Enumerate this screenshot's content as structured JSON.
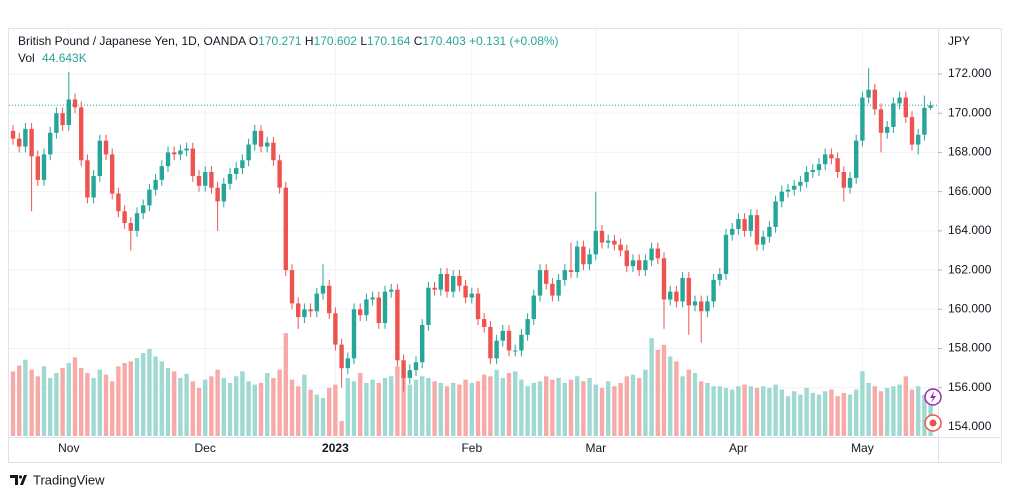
{
  "header": {
    "symbol": "British Pound / Japanese Yen, 1D, OANDA",
    "o_label": "O",
    "open": "170.271",
    "h_label": "H",
    "high": "170.602",
    "l_label": "L",
    "low": "170.164",
    "c_label": "C",
    "close": "170.403",
    "change": "+0.131",
    "change_pct": "(+0.08%)",
    "vol_label": "Vol",
    "vol_value": "44.643K"
  },
  "footer": {
    "brand": "TradingView"
  },
  "chart_data": {
    "type": "candlestick",
    "currency": "JPY",
    "up_color": "#26a69a",
    "down_color": "#ef5350",
    "vol_up_color": "#9fd9d1",
    "vol_down_color": "#f7aaa8",
    "grid": true,
    "ylim": [
      153.6,
      173.3
    ],
    "yticks": [
      {
        "value": 154,
        "label": "154.000"
      },
      {
        "value": 156,
        "label": "156.000"
      },
      {
        "value": 158,
        "label": "158.000"
      },
      {
        "value": 160,
        "label": "160.000"
      },
      {
        "value": 162,
        "label": "162.000"
      },
      {
        "value": 164,
        "label": "164.000"
      },
      {
        "value": 166,
        "label": "166.000"
      },
      {
        "value": 168,
        "label": "168.000"
      },
      {
        "value": 170,
        "label": "170.000"
      },
      {
        "value": 172,
        "label": "172.000"
      }
    ],
    "vol_ylim": [
      0,
      240
    ],
    "categories": [
      null,
      null,
      null,
      null,
      null,
      null,
      null,
      null,
      null,
      "Nov",
      null,
      null,
      null,
      null,
      null,
      null,
      null,
      null,
      null,
      null,
      null,
      null,
      null,
      null,
      null,
      null,
      null,
      null,
      null,
      null,
      null,
      "Dec",
      null,
      null,
      null,
      null,
      null,
      null,
      null,
      null,
      null,
      null,
      null,
      null,
      null,
      null,
      null,
      null,
      null,
      null,
      null,
      null,
      "2023",
      null,
      null,
      null,
      null,
      null,
      null,
      null,
      null,
      null,
      null,
      null,
      null,
      null,
      null,
      null,
      null,
      null,
      null,
      null,
      null,
      null,
      "Feb",
      null,
      null,
      null,
      null,
      null,
      null,
      null,
      null,
      null,
      null,
      null,
      null,
      null,
      null,
      null,
      null,
      null,
      null,
      null,
      "Mar",
      null,
      null,
      null,
      null,
      null,
      null,
      null,
      null,
      null,
      null,
      null,
      null,
      null,
      null,
      null,
      null,
      null,
      null,
      null,
      null,
      null,
      null,
      "Apr",
      null,
      null,
      null,
      null,
      null,
      null,
      null,
      null,
      null,
      null,
      null,
      null,
      null,
      null,
      null,
      null,
      null,
      null,
      null,
      "May",
      null,
      null,
      null,
      null,
      null,
      null,
      null,
      null,
      null,
      null,
      null
    ],
    "open": [
      169.1,
      168.7,
      168.3,
      169.2,
      167.8,
      166.6,
      167.9,
      169.0,
      170.0,
      169.4,
      170.7,
      170.3,
      167.6,
      165.7,
      166.8,
      168.6,
      167.9,
      165.9,
      165.0,
      164.4,
      164.0,
      164.9,
      165.3,
      166.1,
      166.6,
      167.3,
      168.0,
      167.9,
      168.1,
      168.2,
      166.8,
      166.3,
      167.0,
      166.2,
      165.5,
      166.4,
      166.9,
      167.2,
      167.6,
      168.4,
      169.1,
      168.3,
      168.5,
      167.6,
      166.2,
      162.0,
      160.3,
      159.6,
      160.0,
      159.9,
      160.8,
      161.2,
      159.8,
      158.2,
      157.0,
      157.5,
      160.0,
      159.7,
      160.5,
      160.6,
      159.3,
      160.9,
      161.0,
      157.4,
      156.5,
      156.9,
      157.3,
      159.2,
      161.1,
      161.0,
      161.8,
      160.9,
      161.7,
      161.2,
      160.6,
      160.8,
      159.5,
      159.1,
      157.5,
      158.4,
      158.9,
      157.9,
      157.9,
      158.7,
      159.5,
      160.7,
      162.0,
      161.3,
      160.7,
      161.5,
      162.0,
      161.9,
      163.2,
      162.3,
      162.8,
      164.0,
      163.4,
      163.5,
      163.3,
      163.0,
      162.2,
      162.5,
      162.0,
      162.5,
      163.1,
      162.6,
      160.5,
      160.9,
      160.4,
      161.6,
      160.2,
      160.4,
      159.9,
      160.4,
      161.5,
      161.8,
      163.8,
      164.1,
      164.6,
      164.0,
      164.8,
      163.3,
      163.7,
      164.2,
      165.5,
      166.0,
      166.1,
      166.3,
      166.5,
      167.0,
      167.1,
      167.4,
      167.9,
      167.7,
      167.0,
      166.2,
      166.7,
      168.6,
      170.8,
      171.2,
      170.2,
      169.0,
      169.3,
      170.5,
      170.8,
      169.8,
      168.4,
      168.9,
      170.271
    ],
    "high": [
      169.4,
      169.0,
      169.5,
      169.5,
      168.1,
      168.2,
      169.3,
      170.3,
      170.3,
      172.1,
      171.0,
      170.6,
      167.9,
      167.1,
      168.9,
      168.9,
      168.2,
      166.2,
      165.3,
      164.7,
      165.2,
      165.6,
      166.4,
      166.9,
      167.6,
      168.3,
      168.3,
      168.4,
      168.5,
      168.5,
      167.1,
      167.3,
      167.3,
      166.5,
      166.7,
      167.2,
      167.5,
      167.9,
      168.7,
      169.4,
      169.4,
      168.8,
      168.8,
      167.9,
      166.5,
      162.3,
      160.6,
      160.3,
      160.3,
      161.1,
      162.3,
      161.5,
      160.1,
      158.5,
      157.8,
      160.3,
      160.3,
      160.8,
      160.9,
      160.9,
      161.2,
      161.3,
      161.3,
      157.7,
      157.2,
      157.6,
      159.5,
      161.4,
      161.4,
      162.1,
      162.1,
      162.0,
      162.0,
      161.5,
      161.1,
      161.1,
      159.8,
      159.4,
      158.7,
      159.2,
      159.2,
      158.2,
      159.0,
      159.8,
      161.0,
      162.3,
      162.3,
      161.6,
      161.8,
      162.3,
      163.4,
      163.5,
      163.5,
      163.1,
      166.0,
      164.3,
      163.8,
      163.8,
      163.6,
      163.3,
      162.8,
      162.8,
      162.8,
      163.4,
      163.4,
      162.9,
      161.2,
      161.2,
      161.9,
      161.9,
      160.7,
      160.7,
      160.7,
      161.8,
      162.1,
      164.1,
      164.4,
      164.9,
      164.9,
      165.1,
      165.1,
      164.0,
      164.5,
      165.8,
      166.3,
      166.4,
      166.6,
      166.8,
      167.3,
      167.4,
      167.7,
      168.2,
      168.2,
      168.0,
      167.3,
      167.0,
      168.9,
      171.1,
      172.3,
      171.5,
      170.5,
      169.6,
      170.8,
      171.1,
      171.1,
      170.1,
      169.2,
      170.9,
      170.602
    ],
    "low": [
      168.4,
      168.0,
      168.0,
      165.0,
      166.3,
      166.3,
      167.6,
      168.7,
      169.1,
      169.1,
      170.0,
      167.3,
      165.4,
      165.4,
      166.5,
      167.6,
      165.6,
      164.7,
      164.1,
      163.0,
      163.7,
      164.6,
      165.0,
      165.8,
      166.3,
      167.0,
      167.6,
      167.6,
      167.8,
      166.5,
      166.0,
      166.0,
      165.9,
      164.0,
      165.2,
      166.1,
      166.6,
      166.9,
      167.3,
      168.1,
      168.0,
      168.0,
      167.3,
      165.9,
      161.7,
      160.0,
      159.0,
      159.3,
      159.6,
      159.6,
      160.5,
      159.5,
      157.9,
      156.0,
      156.7,
      157.2,
      159.4,
      159.4,
      160.2,
      159.0,
      159.0,
      160.6,
      157.1,
      155.8,
      156.2,
      156.6,
      157.0,
      158.9,
      160.7,
      160.7,
      160.6,
      160.6,
      160.9,
      160.3,
      160.3,
      159.2,
      158.8,
      157.2,
      157.2,
      158.1,
      157.6,
      157.6,
      157.6,
      158.4,
      159.2,
      160.4,
      161.0,
      160.4,
      160.4,
      161.2,
      161.6,
      161.6,
      162.0,
      162.0,
      162.5,
      163.1,
      163.1,
      163.0,
      162.7,
      161.9,
      161.9,
      161.7,
      161.7,
      162.2,
      162.3,
      159.0,
      160.2,
      160.1,
      160.1,
      158.7,
      159.9,
      158.3,
      159.6,
      160.1,
      161.2,
      161.5,
      163.5,
      163.8,
      163.7,
      163.7,
      163.0,
      163.0,
      163.4,
      163.9,
      165.2,
      165.7,
      165.8,
      166.0,
      166.2,
      166.7,
      166.8,
      167.1,
      167.4,
      166.7,
      165.5,
      165.9,
      166.4,
      168.3,
      170.5,
      169.9,
      168.0,
      168.7,
      169.0,
      170.2,
      169.5,
      168.1,
      167.9,
      168.6,
      170.164
    ],
    "close": [
      168.7,
      168.3,
      169.2,
      167.8,
      166.6,
      167.9,
      169.0,
      170.0,
      169.4,
      170.7,
      170.3,
      167.6,
      165.7,
      166.8,
      168.6,
      167.9,
      165.9,
      165.0,
      164.4,
      164.0,
      164.9,
      165.3,
      166.1,
      166.6,
      167.3,
      168.0,
      167.9,
      168.1,
      168.2,
      166.8,
      166.3,
      167.0,
      166.2,
      165.5,
      166.4,
      166.9,
      167.2,
      167.6,
      168.4,
      169.1,
      168.3,
      168.5,
      167.6,
      166.2,
      162.0,
      160.3,
      159.6,
      160.0,
      159.9,
      160.8,
      161.2,
      159.8,
      158.2,
      157.0,
      157.5,
      160.0,
      159.7,
      160.5,
      160.6,
      159.3,
      160.9,
      161.0,
      157.4,
      156.5,
      156.9,
      157.3,
      159.2,
      161.1,
      161.0,
      161.8,
      160.9,
      161.7,
      161.2,
      160.6,
      160.8,
      159.5,
      159.1,
      157.5,
      158.4,
      158.9,
      157.9,
      157.9,
      158.7,
      159.5,
      160.7,
      162.0,
      161.3,
      160.7,
      161.5,
      162.0,
      161.9,
      163.2,
      162.3,
      162.8,
      164.0,
      163.4,
      163.5,
      163.3,
      163.0,
      162.2,
      162.5,
      162.0,
      162.5,
      163.1,
      162.6,
      160.5,
      160.9,
      160.4,
      161.6,
      160.2,
      160.4,
      159.9,
      160.4,
      161.5,
      161.8,
      163.8,
      164.1,
      164.6,
      164.0,
      164.8,
      163.3,
      163.7,
      164.2,
      165.5,
      166.0,
      166.1,
      166.3,
      166.5,
      167.0,
      167.1,
      167.4,
      167.9,
      167.7,
      167.0,
      166.2,
      166.7,
      168.6,
      170.8,
      171.2,
      170.2,
      169.0,
      169.3,
      170.5,
      170.8,
      169.8,
      168.4,
      168.9,
      170.271,
      170.403
    ],
    "volume": [
      78,
      85,
      92,
      80,
      72,
      84,
      70,
      76,
      82,
      88,
      95,
      82,
      76,
      70,
      80,
      74,
      66,
      84,
      88,
      90,
      94,
      100,
      105,
      96,
      90,
      82,
      78,
      70,
      75,
      66,
      58,
      68,
      72,
      80,
      70,
      64,
      72,
      78,
      66,
      62,
      64,
      76,
      70,
      80,
      124,
      68,
      60,
      74,
      56,
      50,
      46,
      58,
      62,
      18,
      70,
      66,
      76,
      64,
      68,
      64,
      70,
      72,
      84,
      74,
      62,
      68,
      72,
      70,
      66,
      64,
      60,
      64,
      62,
      68,
      64,
      66,
      74,
      72,
      80,
      70,
      76,
      78,
      68,
      60,
      64,
      66,
      72,
      68,
      70,
      64,
      68,
      72,
      66,
      70,
      62,
      58,
      66,
      60,
      64,
      72,
      74,
      70,
      80,
      118,
      104,
      110,
      96,
      90,
      72,
      80,
      76,
      66,
      64,
      60,
      60,
      58,
      56,
      60,
      62,
      60,
      58,
      60,
      58,
      62,
      56,
      48,
      54,
      50,
      58,
      52,
      50,
      54,
      56,
      48,
      52,
      50,
      56,
      78,
      64,
      60,
      54,
      58,
      60,
      62,
      72,
      56,
      60,
      50,
      44.643
    ]
  }
}
